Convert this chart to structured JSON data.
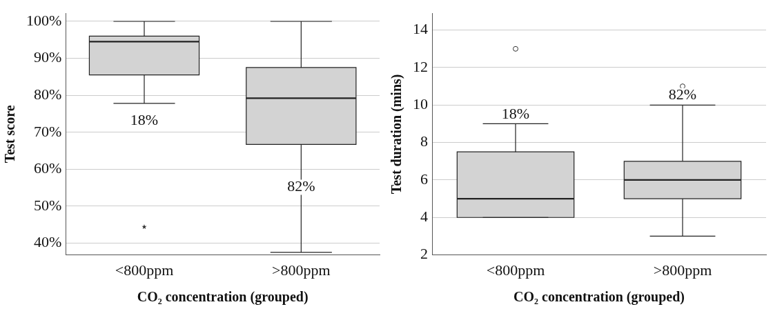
{
  "chart_data": [
    {
      "type": "box",
      "xlabel": "CO₂ concentration (grouped)",
      "ylabel": "Test score",
      "categories": [
        "<800ppm",
        ">800ppm"
      ],
      "color": "#d3d3d3",
      "marker": "star",
      "boxes": [
        {
          "low": 77.8,
          "q1": 85.5,
          "median": 94.5,
          "q3": 96,
          "high": 100,
          "outliers": [
            44.4
          ]
        },
        {
          "low": 37.5,
          "q1": 66.7,
          "median": 79.2,
          "q3": 87.5,
          "high": 100
        }
      ],
      "ylim": [
        36.8,
        102.2
      ],
      "yticks": [
        {
          "value": 40,
          "label": "40%"
        },
        {
          "value": 50,
          "label": "50%"
        },
        {
          "value": 60,
          "label": "60%"
        },
        {
          "value": 70,
          "label": "70%"
        },
        {
          "value": 80,
          "label": "80%"
        },
        {
          "value": 90,
          "label": "90%"
        },
        {
          "value": 100,
          "label": "100%"
        }
      ],
      "grid": "y",
      "annotations": [
        "18%",
        "82%"
      ]
    },
    {
      "type": "box",
      "xlabel": "CO₂ concentration (grouped)",
      "ylabel": "Test duration (mins)",
      "categories": [
        "<800ppm",
        ">800ppm"
      ],
      "color": "#d3d3d3",
      "marker": "circle",
      "boxes": [
        {
          "low": 4,
          "q1": 4,
          "median": 5,
          "q3": 7.5,
          "high": 9,
          "outliers": [
            13
          ]
        },
        {
          "low": 3,
          "q1": 5,
          "median": 6,
          "q3": 7,
          "high": 10,
          "outliers": [
            11
          ]
        }
      ],
      "ylim": [
        2,
        14.9
      ],
      "yticks": [
        2,
        4,
        6,
        8,
        10,
        12,
        14
      ],
      "grid": "y",
      "annotations": [
        "18%",
        "82%"
      ]
    }
  ]
}
